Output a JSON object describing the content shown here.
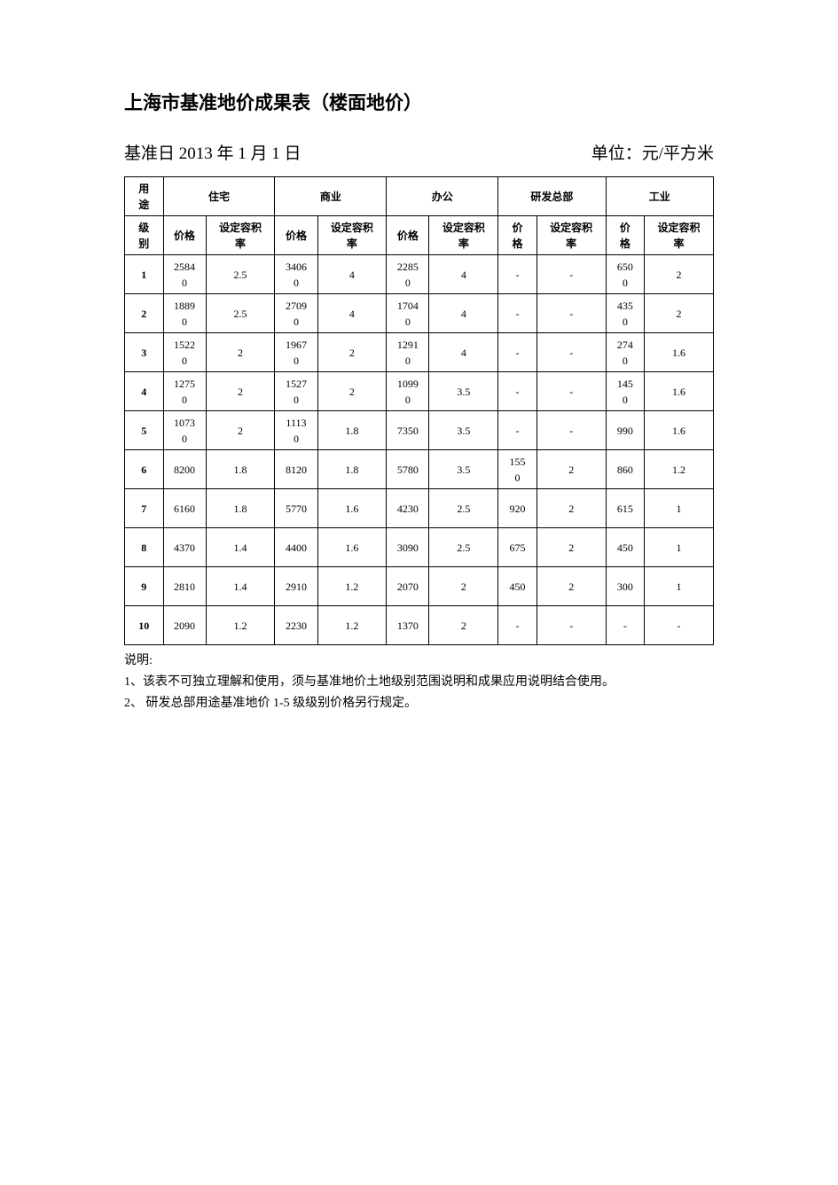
{
  "title": "上海市基准地价成果表（楼面地价）",
  "subtitle_left": "基准日 2013 年 1 月 1 日",
  "subtitle_right": "单位：元/平方米",
  "header_row1_col0_l1": "用",
  "header_row1_col0_l2": "途",
  "header_row2_col0_l1": "级",
  "header_row2_col0_l2": "别",
  "categories": {
    "residential": "住宅",
    "commercial": "商业",
    "office": "办公",
    "rd": "研发总部",
    "industrial": "工业"
  },
  "sub_headers": {
    "price": "价格",
    "price_l1": "价",
    "price_l2": "格",
    "far_l1": "设定容积",
    "far_l2": "率"
  },
  "rows": [
    {
      "level": "1",
      "res_p_l1": "2584",
      "res_p_l2": "0",
      "res_f": "2.5",
      "com_p_l1": "3406",
      "com_p_l2": "0",
      "com_f": "4",
      "off_p_l1": "2285",
      "off_p_l2": "0",
      "off_f": "4",
      "rd_p": "-",
      "rd_f": "-",
      "ind_p_l1": "650",
      "ind_p_l2": "0",
      "ind_f": "2"
    },
    {
      "level": "2",
      "res_p_l1": "1889",
      "res_p_l2": "0",
      "res_f": "2.5",
      "com_p_l1": "2709",
      "com_p_l2": "0",
      "com_f": "4",
      "off_p_l1": "1704",
      "off_p_l2": "0",
      "off_f": "4",
      "rd_p": "-",
      "rd_f": "-",
      "ind_p_l1": "435",
      "ind_p_l2": "0",
      "ind_f": "2"
    },
    {
      "level": "3",
      "res_p_l1": "1522",
      "res_p_l2": "0",
      "res_f": "2",
      "com_p_l1": "1967",
      "com_p_l2": "0",
      "com_f": "2",
      "off_p_l1": "1291",
      "off_p_l2": "0",
      "off_f": "4",
      "rd_p": "-",
      "rd_f": "-",
      "ind_p_l1": "274",
      "ind_p_l2": "0",
      "ind_f": "1.6"
    },
    {
      "level": "4",
      "res_p_l1": "1275",
      "res_p_l2": "0",
      "res_f": "2",
      "com_p_l1": "1527",
      "com_p_l2": "0",
      "com_f": "2",
      "off_p_l1": "1099",
      "off_p_l2": "0",
      "off_f": "3.5",
      "rd_p": "-",
      "rd_f": "-",
      "ind_p_l1": "145",
      "ind_p_l2": "0",
      "ind_f": "1.6"
    },
    {
      "level": "5",
      "res_p_l1": "1073",
      "res_p_l2": "0",
      "res_f": "2",
      "com_p_l1": "1113",
      "com_p_l2": "0",
      "com_f": "1.8",
      "off_p_l1": "",
      "off_p_l2": "7350",
      "off_f": "3.5",
      "rd_p": "-",
      "rd_f": "-",
      "ind_p_l1": "",
      "ind_p_l2": "990",
      "ind_f": "1.6"
    },
    {
      "level": "6",
      "res_p_l1": "",
      "res_p_l2": "8200",
      "res_f": "1.8",
      "com_p_l1": "",
      "com_p_l2": "8120",
      "com_f": "1.8",
      "off_p_l1": "",
      "off_p_l2": "5780",
      "off_f": "3.5",
      "rd_p_l1": "155",
      "rd_p_l2": "0",
      "rd_f": "2",
      "ind_p_l1": "",
      "ind_p_l2": "860",
      "ind_f": "1.2"
    },
    {
      "level": "7",
      "res_p_l1": "",
      "res_p_l2": "6160",
      "res_f": "1.8",
      "com_p_l1": "",
      "com_p_l2": "5770",
      "com_f": "1.6",
      "off_p_l1": "",
      "off_p_l2": "4230",
      "off_f": "2.5",
      "rd_p_l1": "",
      "rd_p_l2": "920",
      "rd_f": "2",
      "ind_p_l1": "",
      "ind_p_l2": "615",
      "ind_f": "1"
    },
    {
      "level": "8",
      "res_p_l1": "",
      "res_p_l2": "4370",
      "res_f": "1.4",
      "com_p_l1": "",
      "com_p_l2": "4400",
      "com_f": "1.6",
      "off_p_l1": "",
      "off_p_l2": "3090",
      "off_f": "2.5",
      "rd_p_l1": "",
      "rd_p_l2": "675",
      "rd_f": "2",
      "ind_p_l1": "",
      "ind_p_l2": "450",
      "ind_f": "1"
    },
    {
      "level": "9",
      "res_p_l1": "",
      "res_p_l2": "2810",
      "res_f": "1.4",
      "com_p_l1": "",
      "com_p_l2": "2910",
      "com_f": "1.2",
      "off_p_l1": "",
      "off_p_l2": "2070",
      "off_f": "2",
      "rd_p_l1": "",
      "rd_p_l2": "450",
      "rd_f": "2",
      "ind_p_l1": "",
      "ind_p_l2": "300",
      "ind_f": "1"
    },
    {
      "level": "10",
      "res_p_l1": "",
      "res_p_l2": "2090",
      "res_f": "1.2",
      "com_p_l1": "",
      "com_p_l2": "2230",
      "com_f": "1.2",
      "off_p_l1": "",
      "off_p_l2": "1370",
      "off_f": "2",
      "rd_p": "-",
      "rd_f": "-",
      "ind_p": "-",
      "ind_f": "-"
    }
  ],
  "notes_title": "说明:",
  "note1": "1、该表不可独立理解和使用，须与基准地价土地级别范围说明和成果应用说明结合使用。",
  "note2": "2、 研发总部用途基准地价 1-5 级级别价格另行规定。",
  "colors": {
    "text": "#000000",
    "background": "#ffffff",
    "border": "#000000"
  }
}
